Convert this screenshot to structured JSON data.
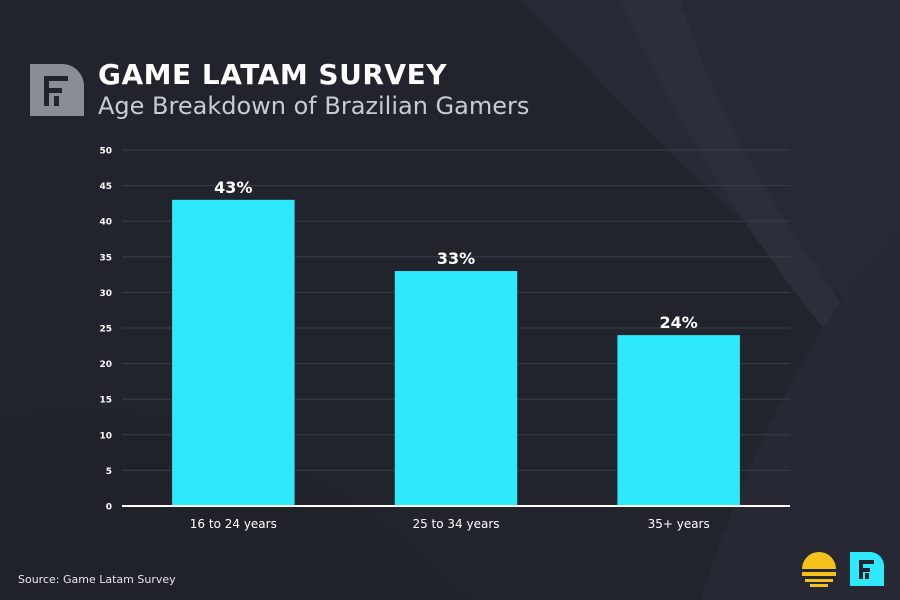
{
  "header": {
    "title": "GAME LATAM SURVEY",
    "subtitle": "Age Breakdown of Brazilian Gamers"
  },
  "footer": {
    "source": "Source: Game Latam Survey"
  },
  "colors": {
    "background": "#22242d",
    "bar": "#2ee8fb",
    "text": "#ffffff",
    "axis": "#ffffff",
    "grid": "#3a3d48"
  },
  "icons": {
    "header_logo": "folha-f-logo-icon",
    "footer_sun": "sun-stripes-icon",
    "footer_logo": "folha-f-logo-icon"
  },
  "chart_data": {
    "type": "bar",
    "categories": [
      "16 to 24 years",
      "25 to 34 years",
      "35+ years"
    ],
    "values": [
      43,
      33,
      24
    ],
    "data_labels": [
      "43%",
      "33%",
      "24%"
    ],
    "ylim": [
      0,
      50
    ],
    "yticks": [
      0,
      5,
      10,
      15,
      20,
      25,
      30,
      35,
      40,
      45,
      50
    ],
    "grid": true,
    "xlabel": "",
    "ylabel": ""
  }
}
